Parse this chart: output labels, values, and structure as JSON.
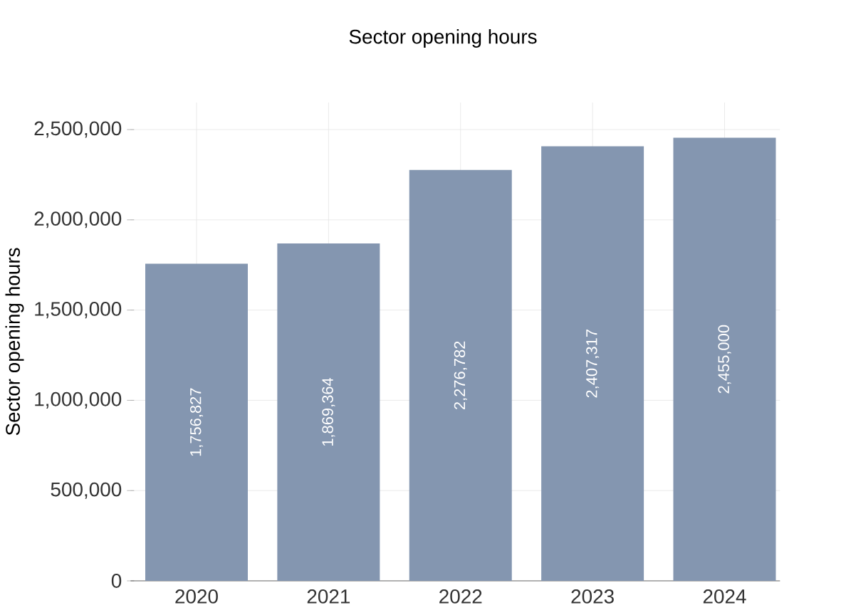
{
  "chart_data": {
    "type": "bar",
    "title": "Sector opening hours",
    "ylabel": "Sector opening hours",
    "categories": [
      "2020",
      "2021",
      "2022",
      "2023",
      "2024"
    ],
    "values": [
      1756827,
      1869364,
      2276782,
      2407317,
      2455000
    ],
    "value_labels": [
      "1,756,827",
      "1,869,364",
      "2,276,782",
      "2,407,317",
      "2,455,000"
    ],
    "color": "#8496b0",
    "ylim": [
      0,
      2650000
    ],
    "yticks": [
      {
        "value": 0,
        "label": "0"
      },
      {
        "value": 500000,
        "label": "500,000"
      },
      {
        "value": 1000000,
        "label": "1,000,000"
      },
      {
        "value": 1500000,
        "label": "1,500,000"
      },
      {
        "value": 2000000,
        "label": "2,000,000"
      },
      {
        "value": 2500000,
        "label": "2,500,000"
      }
    ],
    "grid": true
  }
}
